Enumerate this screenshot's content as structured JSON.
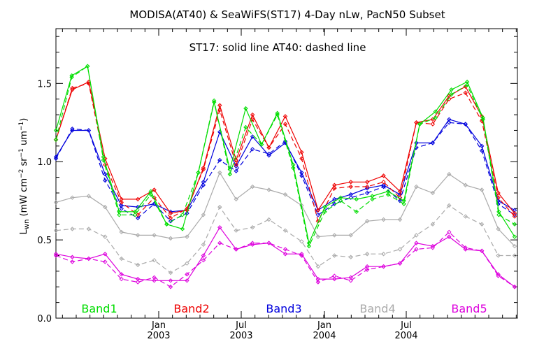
{
  "chart_data": {
    "type": "line",
    "title": "MODISA(AT40) & SeaWiFS(ST17) 4-Day nLw, PacN50 Subset",
    "annotation": "ST17: solid line   AT40: dashed line",
    "ylabel": "L_wn (mW cm^-2 sr^-1 um^-1)",
    "ylabel_main": "L",
    "ylabel_sub": "wn",
    "ylabel_units": " (mW cm",
    "ylabel_exp1": "−2",
    "ylabel_mid": " sr",
    "ylabel_exp2": "−1",
    "ylabel_mid2": " um",
    "ylabel_exp3": "−1",
    "ylabel_end": ")",
    "ylim": [
      0.0,
      1.85
    ],
    "xlim": [
      0,
      33
    ],
    "yticks": [
      {
        "value": 0.0,
        "label": "0.0"
      },
      {
        "value": 0.5,
        "label": "0.5"
      },
      {
        "value": 1.0,
        "label": "1.0"
      },
      {
        "value": 1.5,
        "label": "1.5"
      }
    ],
    "xticks": [
      {
        "value": 7.35,
        "month": "Jan",
        "year": "2003"
      },
      {
        "value": 13.25,
        "month": "Jul",
        "year": "2003"
      },
      {
        "value": 19.2,
        "month": "Jan",
        "year": "2004"
      },
      {
        "value": 25.05,
        "month": "Jul",
        "year": "2004"
      }
    ],
    "x": [
      0,
      1,
      2,
      3,
      4,
      5,
      6,
      7,
      8,
      9,
      10,
      11,
      12,
      13,
      14,
      15,
      16,
      17,
      18,
      19,
      20,
      21,
      22,
      23,
      24,
      25,
      26,
      27,
      28,
      29,
      30,
      31,
      32,
      33
    ],
    "series": [
      {
        "name": "Band1",
        "color": "#00dd00",
        "solid": [
          1.2,
          1.55,
          1.61,
          1.03,
          0.68,
          0.68,
          0.81,
          0.6,
          0.57,
          0.93,
          1.38,
          0.95,
          1.34,
          1.11,
          1.31,
          0.98,
          0.48,
          0.71,
          0.77,
          0.76,
          0.78,
          0.81,
          0.75,
          1.24,
          1.32,
          1.46,
          1.51,
          1.28,
          0.68,
          0.52
        ],
        "dashed": [
          1.14,
          1.54,
          1.61,
          1.01,
          0.66,
          0.66,
          0.79,
          0.6,
          0.66,
          0.93,
          1.39,
          0.92,
          1.22,
          1.11,
          1.3,
          0.96,
          0.46,
          0.68,
          0.75,
          0.68,
          0.76,
          0.79,
          0.73,
          1.24,
          1.28,
          1.43,
          1.49,
          1.27,
          0.66,
          0.6
        ]
      },
      {
        "name": "Band2",
        "color": "#ee0000",
        "solid": [
          1.14,
          1.46,
          1.51,
          1.02,
          0.76,
          0.76,
          0.82,
          0.67,
          0.69,
          0.96,
          1.36,
          1.01,
          1.3,
          1.09,
          1.29,
          1.06,
          0.69,
          0.85,
          0.87,
          0.87,
          0.91,
          0.81,
          1.25,
          1.27,
          1.42,
          1.48,
          1.29,
          0.8,
          0.67
        ],
        "dashed": [
          1.14,
          1.47,
          1.5,
          0.98,
          0.74,
          0.66,
          0.77,
          0.64,
          0.7,
          0.95,
          1.33,
          0.98,
          1.27,
          1.09,
          1.24,
          1.02,
          0.62,
          0.83,
          0.84,
          0.84,
          0.87,
          0.77,
          1.25,
          1.24,
          1.4,
          1.44,
          1.26,
          0.77,
          0.65
        ]
      },
      {
        "name": "Band3",
        "color": "#0000dd",
        "solid": [
          1.03,
          1.2,
          1.2,
          0.92,
          0.72,
          0.71,
          0.73,
          0.68,
          0.69,
          0.87,
          1.19,
          0.97,
          1.16,
          1.04,
          1.12,
          0.93,
          0.69,
          0.76,
          0.79,
          0.83,
          0.85,
          0.79,
          1.12,
          1.12,
          1.27,
          1.24,
          1.1,
          0.75,
          0.69
        ],
        "dashed": [
          1.02,
          1.21,
          1.2,
          0.88,
          0.7,
          0.64,
          0.73,
          0.62,
          0.67,
          0.85,
          1.01,
          0.94,
          1.08,
          1.05,
          1.13,
          0.91,
          0.66,
          0.73,
          0.77,
          0.8,
          0.84,
          0.75,
          1.09,
          1.12,
          1.25,
          1.24,
          1.07,
          0.73,
          0.66
        ]
      },
      {
        "name": "Band4",
        "color": "#aaaaaa",
        "solid": [
          0.74,
          0.77,
          0.78,
          0.71,
          0.55,
          0.53,
          0.53,
          0.51,
          0.52,
          0.66,
          0.93,
          0.76,
          0.84,
          0.82,
          0.79,
          0.72,
          0.52,
          0.53,
          0.53,
          0.62,
          0.63,
          0.63,
          0.84,
          0.8,
          0.92,
          0.85,
          0.82,
          0.57,
          0.46
        ],
        "dashed": [
          0.56,
          0.57,
          0.57,
          0.52,
          0.38,
          0.34,
          0.37,
          0.29,
          0.35,
          0.47,
          0.71,
          0.56,
          0.58,
          0.63,
          0.56,
          0.49,
          0.33,
          0.4,
          0.39,
          0.41,
          0.41,
          0.44,
          0.53,
          0.6,
          0.72,
          0.65,
          0.6,
          0.4,
          0.4
        ]
      },
      {
        "name": "Band5",
        "color": "#dd00dd",
        "solid": [
          0.41,
          0.39,
          0.38,
          0.41,
          0.28,
          0.25,
          0.24,
          0.24,
          0.24,
          0.4,
          0.58,
          0.44,
          0.47,
          0.48,
          0.41,
          0.41,
          0.25,
          0.25,
          0.26,
          0.33,
          0.33,
          0.35,
          0.48,
          0.46,
          0.52,
          0.44,
          0.43,
          0.28,
          0.2
        ],
        "dashed": [
          0.4,
          0.36,
          0.38,
          0.36,
          0.25,
          0.23,
          0.26,
          0.2,
          0.28,
          0.37,
          0.48,
          0.44,
          0.48,
          0.48,
          0.44,
          0.4,
          0.23,
          0.27,
          0.24,
          0.31,
          0.33,
          0.35,
          0.44,
          0.45,
          0.55,
          0.45,
          0.43,
          0.27,
          0.2
        ]
      }
    ],
    "x_offsets": {
      "Band1": [
        0,
        1,
        2,
        3.1,
        4.1,
        5.1,
        5.6,
        6.1,
        7.1,
        8.1,
        9.1,
        10.1,
        11.1,
        12.1,
        13.1,
        14.1,
        15.1,
        16.1,
        17.1,
        18.1,
        19.1,
        20.1,
        21.1,
        22.1,
        23.1,
        24.1,
        25.1,
        26.1,
        27.1,
        28.1
      ],
      "default": [
        0,
        1,
        2,
        3.1,
        4.1,
        5.1,
        6.1,
        7.1,
        8.1,
        9.1,
        10.1,
        11.1,
        12.1,
        13.1,
        14.1,
        15.1,
        16.1,
        17.1,
        18.1,
        19.1,
        20.1,
        21.1,
        22.1,
        23.1,
        24.1,
        25.1,
        26.1,
        27.1,
        28.1
      ]
    },
    "grid": false,
    "legend_placement": "bottom"
  }
}
